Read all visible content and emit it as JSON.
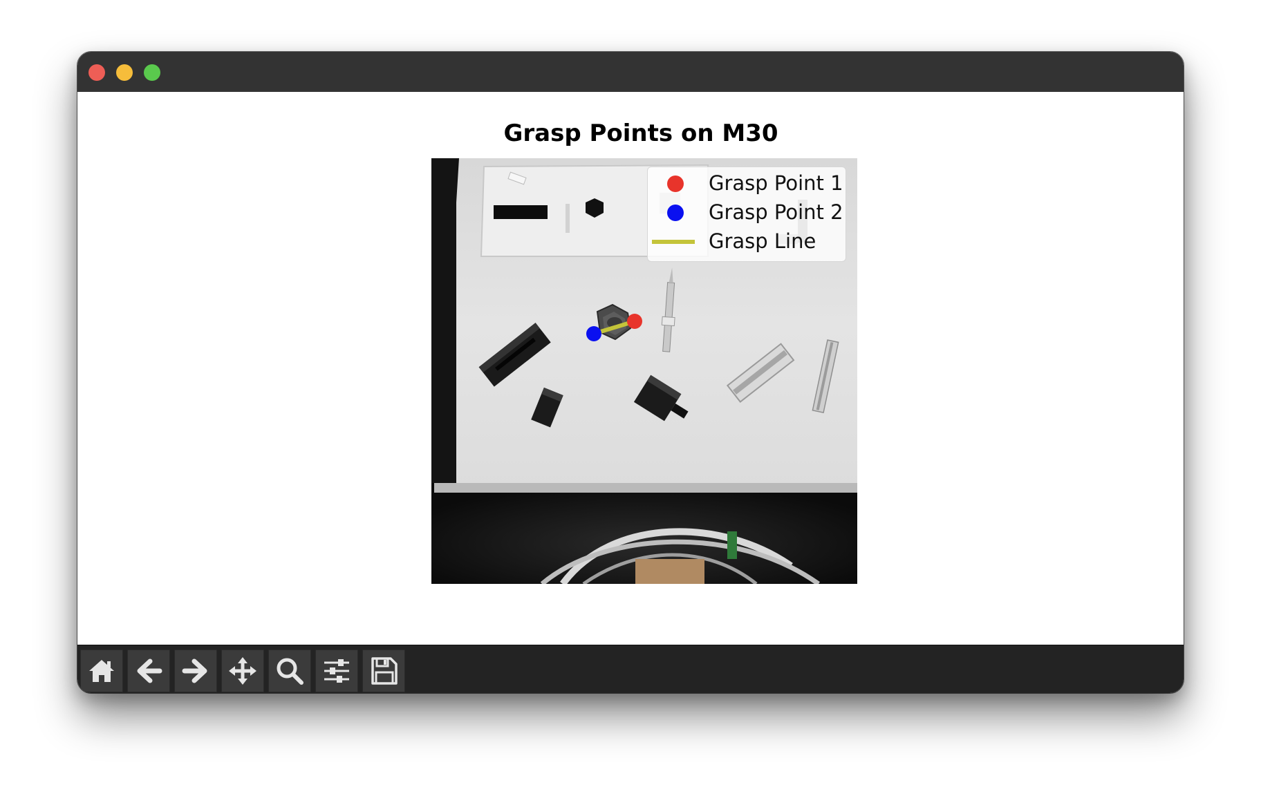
{
  "window": {
    "controls": [
      "close",
      "minimize",
      "zoom"
    ]
  },
  "figure": {
    "title": "Grasp Points on M30"
  },
  "legend": {
    "items": [
      {
        "label": "Grasp Point 1",
        "marker": "circle",
        "color": "#e8342b"
      },
      {
        "label": "Grasp Point 2",
        "marker": "circle",
        "color": "#0a10f0"
      },
      {
        "label": "Grasp Line",
        "marker": "line",
        "color": "#c4c43a"
      }
    ]
  },
  "toolbar": {
    "buttons": [
      {
        "name": "home",
        "icon": "home-icon"
      },
      {
        "name": "back",
        "icon": "arrow-left-icon"
      },
      {
        "name": "forward",
        "icon": "arrow-right-icon"
      },
      {
        "name": "pan",
        "icon": "move-icon"
      },
      {
        "name": "zoom",
        "icon": "magnifier-icon"
      },
      {
        "name": "configure-subplots",
        "icon": "sliders-icon"
      },
      {
        "name": "save",
        "icon": "floppy-icon"
      }
    ]
  },
  "colors": {
    "titlebar": "#333333",
    "toolbar": "#232323",
    "grasp_point_1": "#e8342b",
    "grasp_point_2": "#0a10f0",
    "grasp_line": "#c4c43a"
  }
}
